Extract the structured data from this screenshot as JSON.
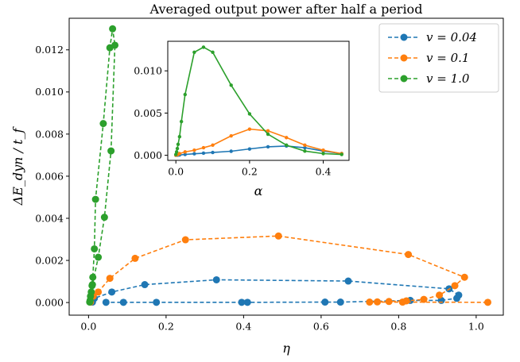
{
  "chart_data": [
    {
      "type": "line",
      "title": "Averaged output power after half a period",
      "xlabel": "η",
      "ylabel": "ΔE_dyn / t_f",
      "xlim": [
        -0.05,
        1.07
      ],
      "ylim": [
        -0.0006,
        0.0135
      ],
      "xticks": [
        0.0,
        0.2,
        0.4,
        0.6,
        0.8,
        1.0
      ],
      "xtick_labels": [
        "0.0",
        "0.2",
        "0.4",
        "0.6",
        "0.8",
        "1.0"
      ],
      "yticks": [
        0.0,
        0.002,
        0.004,
        0.006,
        0.008,
        0.01,
        0.012
      ],
      "ytick_labels": [
        "0.000",
        "0.002",
        "0.004",
        "0.006",
        "0.008",
        "0.010",
        "0.012"
      ],
      "legend_position": "top-right",
      "series": [
        {
          "name": "v = 0.04",
          "color": "#1f77b4",
          "points": [
            [
              0.01,
              2e-05
            ],
            [
              0.015,
              0.0002
            ],
            [
              0.06,
              0.0005
            ],
            [
              0.145,
              0.00085
            ],
            [
              0.33,
              0.00108
            ],
            [
              0.67,
              0.00102
            ],
            [
              0.93,
              0.00065
            ],
            [
              0.955,
              0.00035
            ],
            [
              0.95,
              0.0002
            ],
            [
              0.91,
              0.0001
            ],
            [
              0.83,
              0.0001
            ],
            [
              0.65,
              2e-05
            ],
            [
              0.61,
              2e-05
            ],
            [
              0.41,
              1e-05
            ],
            [
              0.395,
              1e-05
            ],
            [
              0.175,
              1e-05
            ],
            [
              0.09,
              1e-05
            ],
            [
              0.045,
              1e-05
            ]
          ]
        },
        {
          "name": "v = 0.1",
          "color": "#ff7f0e",
          "points": [
            [
              0.005,
              2e-05
            ],
            [
              0.012,
              0.0003
            ],
            [
              0.025,
              0.0005
            ],
            [
              0.055,
              0.00115
            ],
            [
              0.12,
              0.0021
            ],
            [
              0.25,
              0.00298
            ],
            [
              0.49,
              0.00316
            ],
            [
              0.825,
              0.00228
            ],
            [
              0.97,
              0.0012
            ],
            [
              0.945,
              0.0008
            ],
            [
              0.905,
              0.00035
            ],
            [
              0.865,
              0.00015
            ],
            [
              0.82,
              8e-05
            ],
            [
              0.775,
              5e-05
            ],
            [
              0.745,
              3e-05
            ],
            [
              0.725,
              2e-05
            ],
            [
              0.81,
              2e-05
            ],
            [
              1.03,
              1e-05
            ]
          ]
        },
        {
          "name": "v = 1.0",
          "color": "#2ca02c",
          "points": [
            [
              0.003,
              2e-05
            ],
            [
              0.004,
              0.0001
            ],
            [
              0.005,
              0.0003
            ],
            [
              0.007,
              0.0005
            ],
            [
              0.009,
              0.0008
            ],
            [
              0.011,
              0.0012
            ],
            [
              0.015,
              0.00255
            ],
            [
              0.018,
              0.0049
            ],
            [
              0.038,
              0.0085
            ],
            [
              0.055,
              0.0121
            ],
            [
              0.062,
              0.013
            ],
            [
              0.068,
              0.01222
            ],
            [
              0.058,
              0.0072
            ],
            [
              0.041,
              0.00405
            ],
            [
              0.025,
              0.00215
            ],
            [
              0.01,
              0.00085
            ]
          ]
        }
      ]
    },
    {
      "type": "line",
      "title": "",
      "xlabel": "α",
      "ylabel": "",
      "xlim": [
        -0.022,
        0.47
      ],
      "ylim": [
        -0.0006,
        0.0135
      ],
      "xticks": [
        0.0,
        0.2,
        0.4
      ],
      "xtick_labels": [
        "0.0",
        "0.2",
        "0.4"
      ],
      "yticks": [
        0.0,
        0.005,
        0.01
      ],
      "ytick_labels": [
        "0.000",
        "0.005",
        "0.010"
      ],
      "series": [
        {
          "name": "v = 0.04",
          "color": "#1f77b4",
          "points": [
            [
              0.0,
              1e-05
            ],
            [
              0.005,
              2e-05
            ],
            [
              0.01,
              4e-05
            ],
            [
              0.025,
              0.0001
            ],
            [
              0.05,
              0.00018
            ],
            [
              0.075,
              0.00025
            ],
            [
              0.1,
              0.00033
            ],
            [
              0.15,
              0.00048
            ],
            [
              0.2,
              0.00075
            ],
            [
              0.25,
              0.001
            ],
            [
              0.3,
              0.0011
            ],
            [
              0.35,
              0.0009
            ],
            [
              0.4,
              0.0005
            ],
            [
              0.45,
              0.0002
            ]
          ]
        },
        {
          "name": "v = 0.1",
          "color": "#ff7f0e",
          "points": [
            [
              0.0,
              2e-05
            ],
            [
              0.005,
              8e-05
            ],
            [
              0.01,
              0.0002
            ],
            [
              0.025,
              0.0004
            ],
            [
              0.05,
              0.0006
            ],
            [
              0.075,
              0.0009
            ],
            [
              0.1,
              0.0012
            ],
            [
              0.15,
              0.0023
            ],
            [
              0.2,
              0.0031
            ],
            [
              0.25,
              0.0029
            ],
            [
              0.3,
              0.0021
            ],
            [
              0.35,
              0.0012
            ],
            [
              0.4,
              0.0006
            ],
            [
              0.45,
              0.0002
            ]
          ]
        },
        {
          "name": "v = 1.0",
          "color": "#2ca02c",
          "points": [
            [
              0.0,
              0.0001
            ],
            [
              0.002,
              0.0004
            ],
            [
              0.004,
              0.0008
            ],
            [
              0.006,
              0.0013
            ],
            [
              0.01,
              0.0022
            ],
            [
              0.015,
              0.004
            ],
            [
              0.025,
              0.0072
            ],
            [
              0.05,
              0.0122
            ],
            [
              0.075,
              0.0128
            ],
            [
              0.1,
              0.0122
            ],
            [
              0.15,
              0.0083
            ],
            [
              0.2,
              0.0049
            ],
            [
              0.25,
              0.0025
            ],
            [
              0.3,
              0.0012
            ],
            [
              0.35,
              0.0005
            ],
            [
              0.4,
              0.0002
            ],
            [
              0.45,
              0.0001
            ]
          ]
        }
      ]
    }
  ]
}
